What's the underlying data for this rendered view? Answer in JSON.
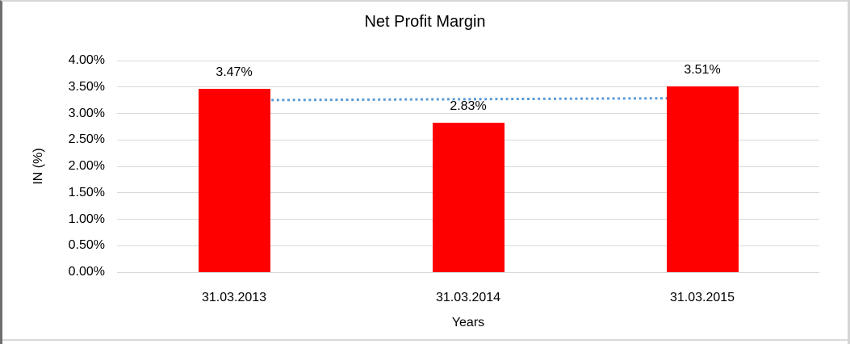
{
  "chart_data": {
    "type": "bar",
    "title": "Net Profit Margin",
    "xlabel": "Years",
    "ylabel": "IN (%)",
    "categories": [
      "31.03.2013",
      "31.03.2014",
      "31.03.2015"
    ],
    "values": [
      3.47,
      2.83,
      3.51
    ],
    "data_labels": [
      "3.47%",
      "2.83%",
      "3.51%"
    ],
    "ylim": [
      0,
      4
    ],
    "ytick_step": 0.5,
    "ytick_labels": [
      "0.00%",
      "0.50%",
      "1.00%",
      "1.50%",
      "2.00%",
      "2.50%",
      "3.00%",
      "3.50%",
      "4.00%"
    ],
    "grid": "horizontal",
    "legend": "none",
    "bar_color": "#ff0000",
    "gridline_color": "#d9d9d9",
    "trendline": {
      "type": "linear",
      "style": "dotted",
      "color": "#5b9bd5"
    }
  }
}
